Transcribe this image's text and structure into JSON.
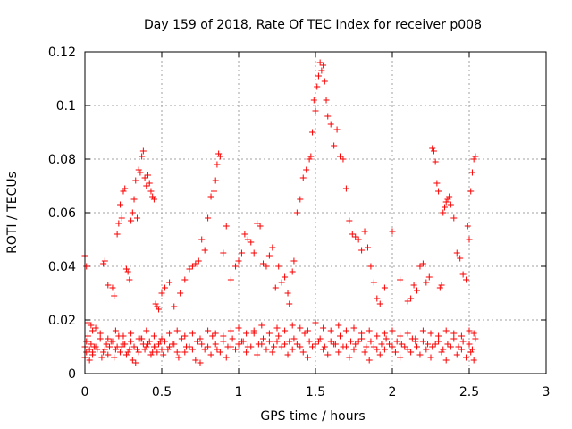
{
  "colors": {
    "series": "#ff0000",
    "grid": "#a0a0a0",
    "axis": "#000000",
    "background": "#ffffff"
  },
  "chart_data": {
    "type": "scatter",
    "title": "Day 159 of 2018, Rate Of TEC Index for receiver p008",
    "xlabel": "GPS time / hours",
    "ylabel": "ROTI / TECUs",
    "xlim": [
      0,
      3
    ],
    "ylim": [
      0,
      0.12
    ],
    "xticks": [
      0,
      0.5,
      1,
      1.5,
      2,
      2.5,
      3
    ],
    "xtick_labels": [
      "0",
      "0.5",
      "1",
      "1.5",
      "2",
      "2.5",
      "3"
    ],
    "yticks": [
      0,
      0.02,
      0.04,
      0.06,
      0.08,
      0.1,
      0.12
    ],
    "ytick_labels": [
      "0",
      "0.02",
      "0.04",
      "0.06",
      "0.08",
      "0.1",
      "0.12"
    ],
    "grid": true,
    "marker": "+",
    "series": [
      {
        "name": "p008",
        "description": "Approximate data points estimated from gridlines; a dense band around 0.01 spans roughly 0 to 2.55 hours",
        "x": [
          0.0,
          0.01,
          0.02,
          0.03,
          0.04,
          0.05,
          0.06,
          0.08,
          0.1,
          0.12,
          0.14,
          0.16,
          0.18,
          0.2,
          0.22,
          0.24,
          0.26,
          0.28,
          0.3,
          0.32,
          0.34,
          0.36,
          0.38,
          0.4,
          0.42,
          0.44,
          0.46,
          0.48,
          0.5,
          0.52,
          0.55,
          0.58,
          0.6,
          0.63,
          0.66,
          0.7,
          0.73,
          0.76,
          0.8,
          0.83,
          0.86,
          0.9,
          0.93,
          0.96,
          1.0,
          1.03,
          1.06,
          1.1,
          1.13,
          1.16,
          1.2,
          1.23,
          1.26,
          1.3,
          1.33,
          1.36,
          1.4,
          1.43,
          1.46,
          1.5,
          1.53,
          1.56,
          1.6,
          1.63,
          1.66,
          1.7,
          1.73,
          1.76,
          1.8,
          1.83,
          1.86,
          1.9,
          1.93,
          1.96,
          2.0,
          2.03,
          2.06,
          2.1,
          2.13,
          2.16,
          2.2,
          2.23,
          2.26,
          2.3,
          2.33,
          2.36,
          2.4,
          2.43,
          2.46,
          2.5,
          2.52,
          2.54,
          0.0,
          0.01,
          0.03,
          0.05,
          0.07,
          0.11,
          0.13,
          0.15,
          0.17,
          0.19,
          0.21,
          0.23,
          0.25,
          0.27,
          0.29,
          0.31,
          0.33,
          0.35,
          0.37,
          0.39,
          0.41,
          0.43,
          0.45,
          0.47,
          0.49,
          0.51,
          0.54,
          0.57,
          0.61,
          0.65,
          0.68,
          0.72,
          0.75,
          0.78,
          0.82,
          0.85,
          0.88,
          0.92,
          0.95,
          0.98,
          1.02,
          1.05,
          1.08,
          1.12,
          1.15,
          1.18,
          1.22,
          1.25,
          1.28,
          1.32,
          1.35,
          1.38,
          1.42,
          1.45,
          1.48,
          1.52,
          1.55,
          1.58,
          1.62,
          1.65,
          1.68,
          1.72,
          1.75,
          1.78,
          1.82,
          1.85,
          1.88,
          1.92,
          1.95,
          1.98,
          2.02,
          2.05,
          2.08,
          2.12,
          2.15,
          2.18,
          2.22,
          2.25,
          2.28,
          2.32,
          2.35,
          2.38,
          2.42,
          2.45,
          2.48,
          2.51,
          2.53,
          0.02,
          0.05,
          0.1,
          0.15,
          0.2,
          0.25,
          0.3,
          0.35,
          0.4,
          0.45,
          0.5,
          0.55,
          0.6,
          0.65,
          0.7,
          0.75,
          0.8,
          0.85,
          0.9,
          0.95,
          1.0,
          1.05,
          1.1,
          1.15,
          1.2,
          1.25,
          1.3,
          1.35,
          1.4,
          1.45,
          1.5,
          1.55,
          1.6,
          1.65,
          1.7,
          1.75,
          1.8,
          1.85,
          1.9,
          1.95,
          2.0,
          2.05,
          2.1,
          2.15,
          2.2,
          2.25,
          2.3,
          2.35,
          2.4,
          2.45,
          2.5,
          2.53,
          0.0,
          0.01,
          0.02,
          0.04,
          0.07,
          0.12,
          0.13,
          0.15,
          0.18,
          0.19,
          0.21,
          0.22,
          0.23,
          0.24,
          0.25,
          0.26,
          0.27,
          0.28,
          0.29,
          0.3,
          0.31,
          0.32,
          0.33,
          0.34,
          0.35,
          0.36,
          0.37,
          0.38,
          0.39,
          0.4,
          0.41,
          0.42,
          0.43,
          0.44,
          0.45,
          0.46,
          0.47,
          0.48,
          0.5,
          0.52,
          0.55,
          0.58,
          0.62,
          0.65,
          0.68,
          0.7,
          0.72,
          0.74,
          0.76,
          0.78,
          0.8,
          0.82,
          0.84,
          0.85,
          0.86,
          0.87,
          0.88,
          0.9,
          0.92,
          0.95,
          0.98,
          1.0,
          1.02,
          1.04,
          1.06,
          1.08,
          1.1,
          1.12,
          1.14,
          1.16,
          1.18,
          1.2,
          1.22,
          1.24,
          1.26,
          1.28,
          1.3,
          1.32,
          1.33,
          1.35,
          1.36,
          1.38,
          1.4,
          1.42,
          1.44,
          1.46,
          1.47,
          1.48,
          1.49,
          1.5,
          1.51,
          1.52,
          1.53,
          1.54,
          1.55,
          1.56,
          1.57,
          1.58,
          1.6,
          1.62,
          1.64,
          1.66,
          1.68,
          1.7,
          1.72,
          1.74,
          1.76,
          1.78,
          1.8,
          1.82,
          1.84,
          1.86,
          1.88,
          1.9,
          1.92,
          1.95,
          2.0,
          2.05,
          2.1,
          2.12,
          2.14,
          2.16,
          2.18,
          2.2,
          2.22,
          2.24,
          2.26,
          2.27,
          2.28,
          2.29,
          2.3,
          2.31,
          2.32,
          2.33,
          2.34,
          2.35,
          2.36,
          2.37,
          2.38,
          2.4,
          2.42,
          2.44,
          2.46,
          2.48,
          2.49,
          2.5,
          2.51,
          2.52,
          2.53,
          2.54
        ],
        "y": [
          0.01,
          0.008,
          0.012,
          0.009,
          0.011,
          0.007,
          0.01,
          0.009,
          0.013,
          0.008,
          0.011,
          0.01,
          0.012,
          0.009,
          0.014,
          0.01,
          0.011,
          0.008,
          0.012,
          0.01,
          0.009,
          0.013,
          0.011,
          0.01,
          0.012,
          0.008,
          0.01,
          0.011,
          0.009,
          0.012,
          0.01,
          0.011,
          0.008,
          0.013,
          0.01,
          0.009,
          0.012,
          0.011,
          0.01,
          0.014,
          0.009,
          0.012,
          0.01,
          0.013,
          0.011,
          0.012,
          0.01,
          0.015,
          0.011,
          0.013,
          0.012,
          0.01,
          0.014,
          0.011,
          0.012,
          0.013,
          0.01,
          0.015,
          0.012,
          0.011,
          0.013,
          0.01,
          0.012,
          0.011,
          0.014,
          0.01,
          0.012,
          0.011,
          0.013,
          0.01,
          0.012,
          0.009,
          0.011,
          0.013,
          0.01,
          0.012,
          0.011,
          0.009,
          0.013,
          0.01,
          0.012,
          0.011,
          0.01,
          0.012,
          0.009,
          0.011,
          0.013,
          0.01,
          0.012,
          0.011,
          0.009,
          0.013,
          0.006,
          0.012,
          0.005,
          0.008,
          0.01,
          0.006,
          0.009,
          0.007,
          0.012,
          0.006,
          0.01,
          0.008,
          0.011,
          0.007,
          0.009,
          0.005,
          0.004,
          0.008,
          0.013,
          0.009,
          0.011,
          0.007,
          0.01,
          0.008,
          0.012,
          0.007,
          0.009,
          0.011,
          0.006,
          0.008,
          0.01,
          0.005,
          0.004,
          0.009,
          0.007,
          0.011,
          0.008,
          0.006,
          0.01,
          0.009,
          0.012,
          0.008,
          0.01,
          0.007,
          0.011,
          0.009,
          0.008,
          0.012,
          0.01,
          0.007,
          0.009,
          0.011,
          0.008,
          0.006,
          0.01,
          0.012,
          0.009,
          0.007,
          0.011,
          0.008,
          0.01,
          0.006,
          0.009,
          0.012,
          0.008,
          0.005,
          0.01,
          0.007,
          0.009,
          0.011,
          0.008,
          0.006,
          0.01,
          0.008,
          0.012,
          0.007,
          0.009,
          0.006,
          0.011,
          0.008,
          0.005,
          0.01,
          0.007,
          0.009,
          0.006,
          0.008,
          0.005,
          0.014,
          0.016,
          0.015,
          0.013,
          0.016,
          0.014,
          0.015,
          0.013,
          0.016,
          0.014,
          0.013,
          0.015,
          0.016,
          0.014,
          0.015,
          0.013,
          0.016,
          0.015,
          0.014,
          0.016,
          0.017,
          0.015,
          0.016,
          0.018,
          0.015,
          0.017,
          0.016,
          0.018,
          0.017,
          0.016,
          0.019,
          0.017,
          0.016,
          0.018,
          0.016,
          0.017,
          0.015,
          0.016,
          0.014,
          0.015,
          0.016,
          0.014,
          0.015,
          0.013,
          0.016,
          0.015,
          0.014,
          0.016,
          0.015,
          0.014,
          0.016,
          0.015,
          0.044,
          0.04,
          0.019,
          0.018,
          0.017,
          0.041,
          0.042,
          0.033,
          0.032,
          0.029,
          0.052,
          0.056,
          0.063,
          0.058,
          0.068,
          0.069,
          0.039,
          0.038,
          0.035,
          0.057,
          0.06,
          0.065,
          0.072,
          0.058,
          0.076,
          0.075,
          0.081,
          0.083,
          0.073,
          0.07,
          0.074,
          0.071,
          0.068,
          0.066,
          0.065,
          0.026,
          0.025,
          0.024,
          0.03,
          0.032,
          0.034,
          0.025,
          0.03,
          0.035,
          0.039,
          0.04,
          0.041,
          0.042,
          0.05,
          0.046,
          0.058,
          0.066,
          0.068,
          0.072,
          0.078,
          0.082,
          0.081,
          0.045,
          0.055,
          0.035,
          0.04,
          0.042,
          0.045,
          0.052,
          0.05,
          0.049,
          0.045,
          0.056,
          0.055,
          0.041,
          0.04,
          0.044,
          0.047,
          0.032,
          0.04,
          0.034,
          0.036,
          0.03,
          0.026,
          0.038,
          0.042,
          0.06,
          0.065,
          0.073,
          0.076,
          0.08,
          0.081,
          0.09,
          0.102,
          0.098,
          0.107,
          0.111,
          0.116,
          0.113,
          0.115,
          0.109,
          0.102,
          0.096,
          0.093,
          0.085,
          0.091,
          0.081,
          0.08,
          0.069,
          0.057,
          0.052,
          0.051,
          0.05,
          0.046,
          0.053,
          0.047,
          0.04,
          0.034,
          0.028,
          0.026,
          0.032,
          0.053,
          0.035,
          0.027,
          0.028,
          0.033,
          0.031,
          0.04,
          0.041,
          0.034,
          0.036,
          0.084,
          0.083,
          0.079,
          0.071,
          0.068,
          0.032,
          0.033,
          0.06,
          0.062,
          0.064,
          0.065,
          0.066,
          0.063,
          0.058,
          0.045,
          0.043,
          0.037,
          0.035,
          0.055,
          0.05,
          0.068,
          0.075,
          0.08,
          0.081
        ]
      }
    ]
  }
}
